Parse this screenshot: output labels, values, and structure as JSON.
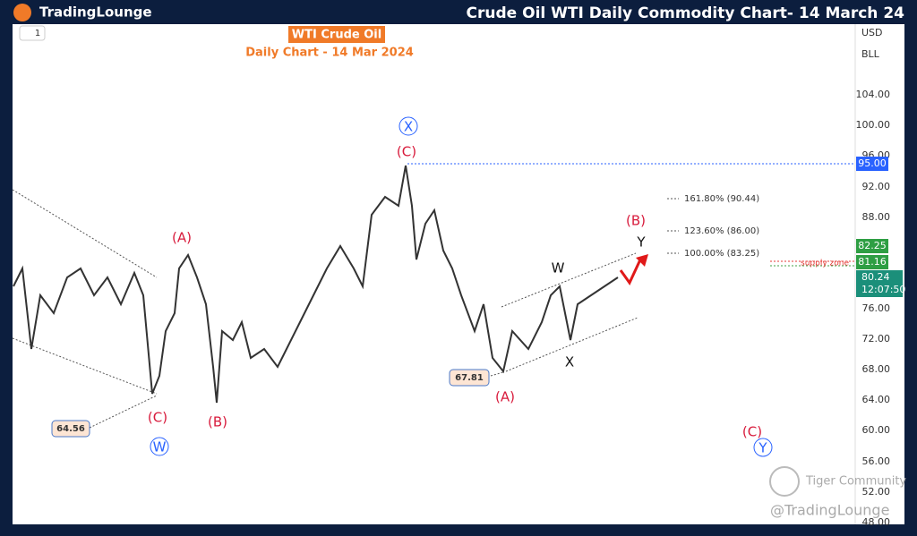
{
  "header": {
    "logo": "TradingLounge",
    "title": "Crude Oil WTI Daily Commodity Chart- 14 March 24"
  },
  "toolbar": {
    "interval": "1",
    "currency": "USD",
    "unit": "BLL"
  },
  "chart": {
    "title": "WTI Crude Oil",
    "subtitle": "Daily Chart - 14 Mar 2024",
    "price_axis": [
      "104.00",
      "100.00",
      "96.00",
      "92.00",
      "88.00",
      "76.00",
      "72.00",
      "68.00",
      "64.00",
      "60.00",
      "56.00",
      "52.00",
      "48.00"
    ],
    "price_tags": {
      "level": "95.00",
      "high": "82.25",
      "low": "81.16",
      "last": "80.24",
      "countdown": "12:07:50"
    },
    "fib_levels": [
      "161.80% (90.44)",
      "123.60% (86.00)",
      "100.00% (83.25)"
    ],
    "supply_zone": "supply zone",
    "boxes": [
      "64.56",
      "67.81"
    ],
    "wave_labels": {
      "x_circle": "X",
      "c_top": "(C)",
      "a_left": "(A)",
      "c_left": "(C)",
      "w_circle": "W",
      "b_left": "(B)",
      "a_right": "(A)",
      "w": "W",
      "x": "X",
      "y": "Y",
      "b_right": "(B)",
      "c_target": "(C)",
      "y_circle": "Y"
    },
    "watermarks": [
      "Tiger Community",
      "@TradingLounge"
    ]
  }
}
